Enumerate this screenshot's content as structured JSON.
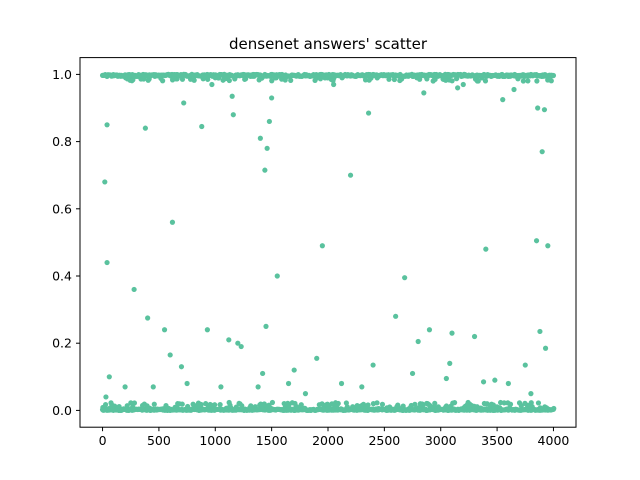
{
  "chart_data": {
    "type": "scatter",
    "title": "densenet answers' scatter",
    "xlabel": "",
    "ylabel": "",
    "xlim": [
      -200,
      4200
    ],
    "ylim": [
      -0.05,
      1.05
    ],
    "x_ticks": [
      0,
      500,
      1000,
      1500,
      2000,
      2500,
      3000,
      3500,
      4000
    ],
    "y_ticks": [
      0.0,
      0.2,
      0.4,
      0.6,
      0.8,
      1.0
    ],
    "y_tick_labels": [
      "0.0",
      "0.2",
      "0.4",
      "0.6",
      "0.8",
      "1.0"
    ],
    "grid": false,
    "legend": "none",
    "color": "#5ac29e",
    "series": [
      {
        "x": [
          20,
          40,
          30,
          40,
          60,
          200,
          280,
          380,
          400,
          450,
          550,
          600,
          620,
          700,
          720,
          750,
          880,
          930,
          970,
          1000,
          1050,
          1120,
          1150,
          1160,
          1200,
          1230,
          1380,
          1400,
          1420,
          1440,
          1450,
          1460,
          1480,
          1500,
          1550,
          1650,
          1700,
          1800,
          1900,
          1950,
          2050,
          2120,
          2200,
          2300,
          2360,
          2400,
          2600,
          2680,
          2750,
          2800,
          2850,
          2900,
          2950,
          3050,
          3080,
          3100,
          3150,
          3200,
          3300,
          3380,
          3400,
          3480,
          3550,
          3600,
          3650,
          3750,
          3800,
          3850,
          3860,
          3880,
          3900,
          3920,
          3930,
          3950
        ],
        "y": [
          0.68,
          0.44,
          0.04,
          0.85,
          0.1,
          0.07,
          0.36,
          0.84,
          0.275,
          0.07,
          0.24,
          0.165,
          0.56,
          0.13,
          0.915,
          0.08,
          0.845,
          0.24,
          0.97,
          0.99,
          0.07,
          0.21,
          0.935,
          0.88,
          0.2,
          0.19,
          0.07,
          0.81,
          0.11,
          0.715,
          0.25,
          0.78,
          0.86,
          0.93,
          0.4,
          0.08,
          0.12,
          0.05,
          0.155,
          0.49,
          0.97,
          0.08,
          0.7,
          0.07,
          0.885,
          0.135,
          0.28,
          0.395,
          0.11,
          0.205,
          0.945,
          0.24,
          0.985,
          0.095,
          0.14,
          0.23,
          0.96,
          0.97,
          0.22,
          0.085,
          0.48,
          0.09,
          0.925,
          0.08,
          0.955,
          0.135,
          0.05,
          0.505,
          0.9,
          0.235,
          0.77,
          0.895,
          0.185,
          0.49
        ]
      }
    ]
  }
}
